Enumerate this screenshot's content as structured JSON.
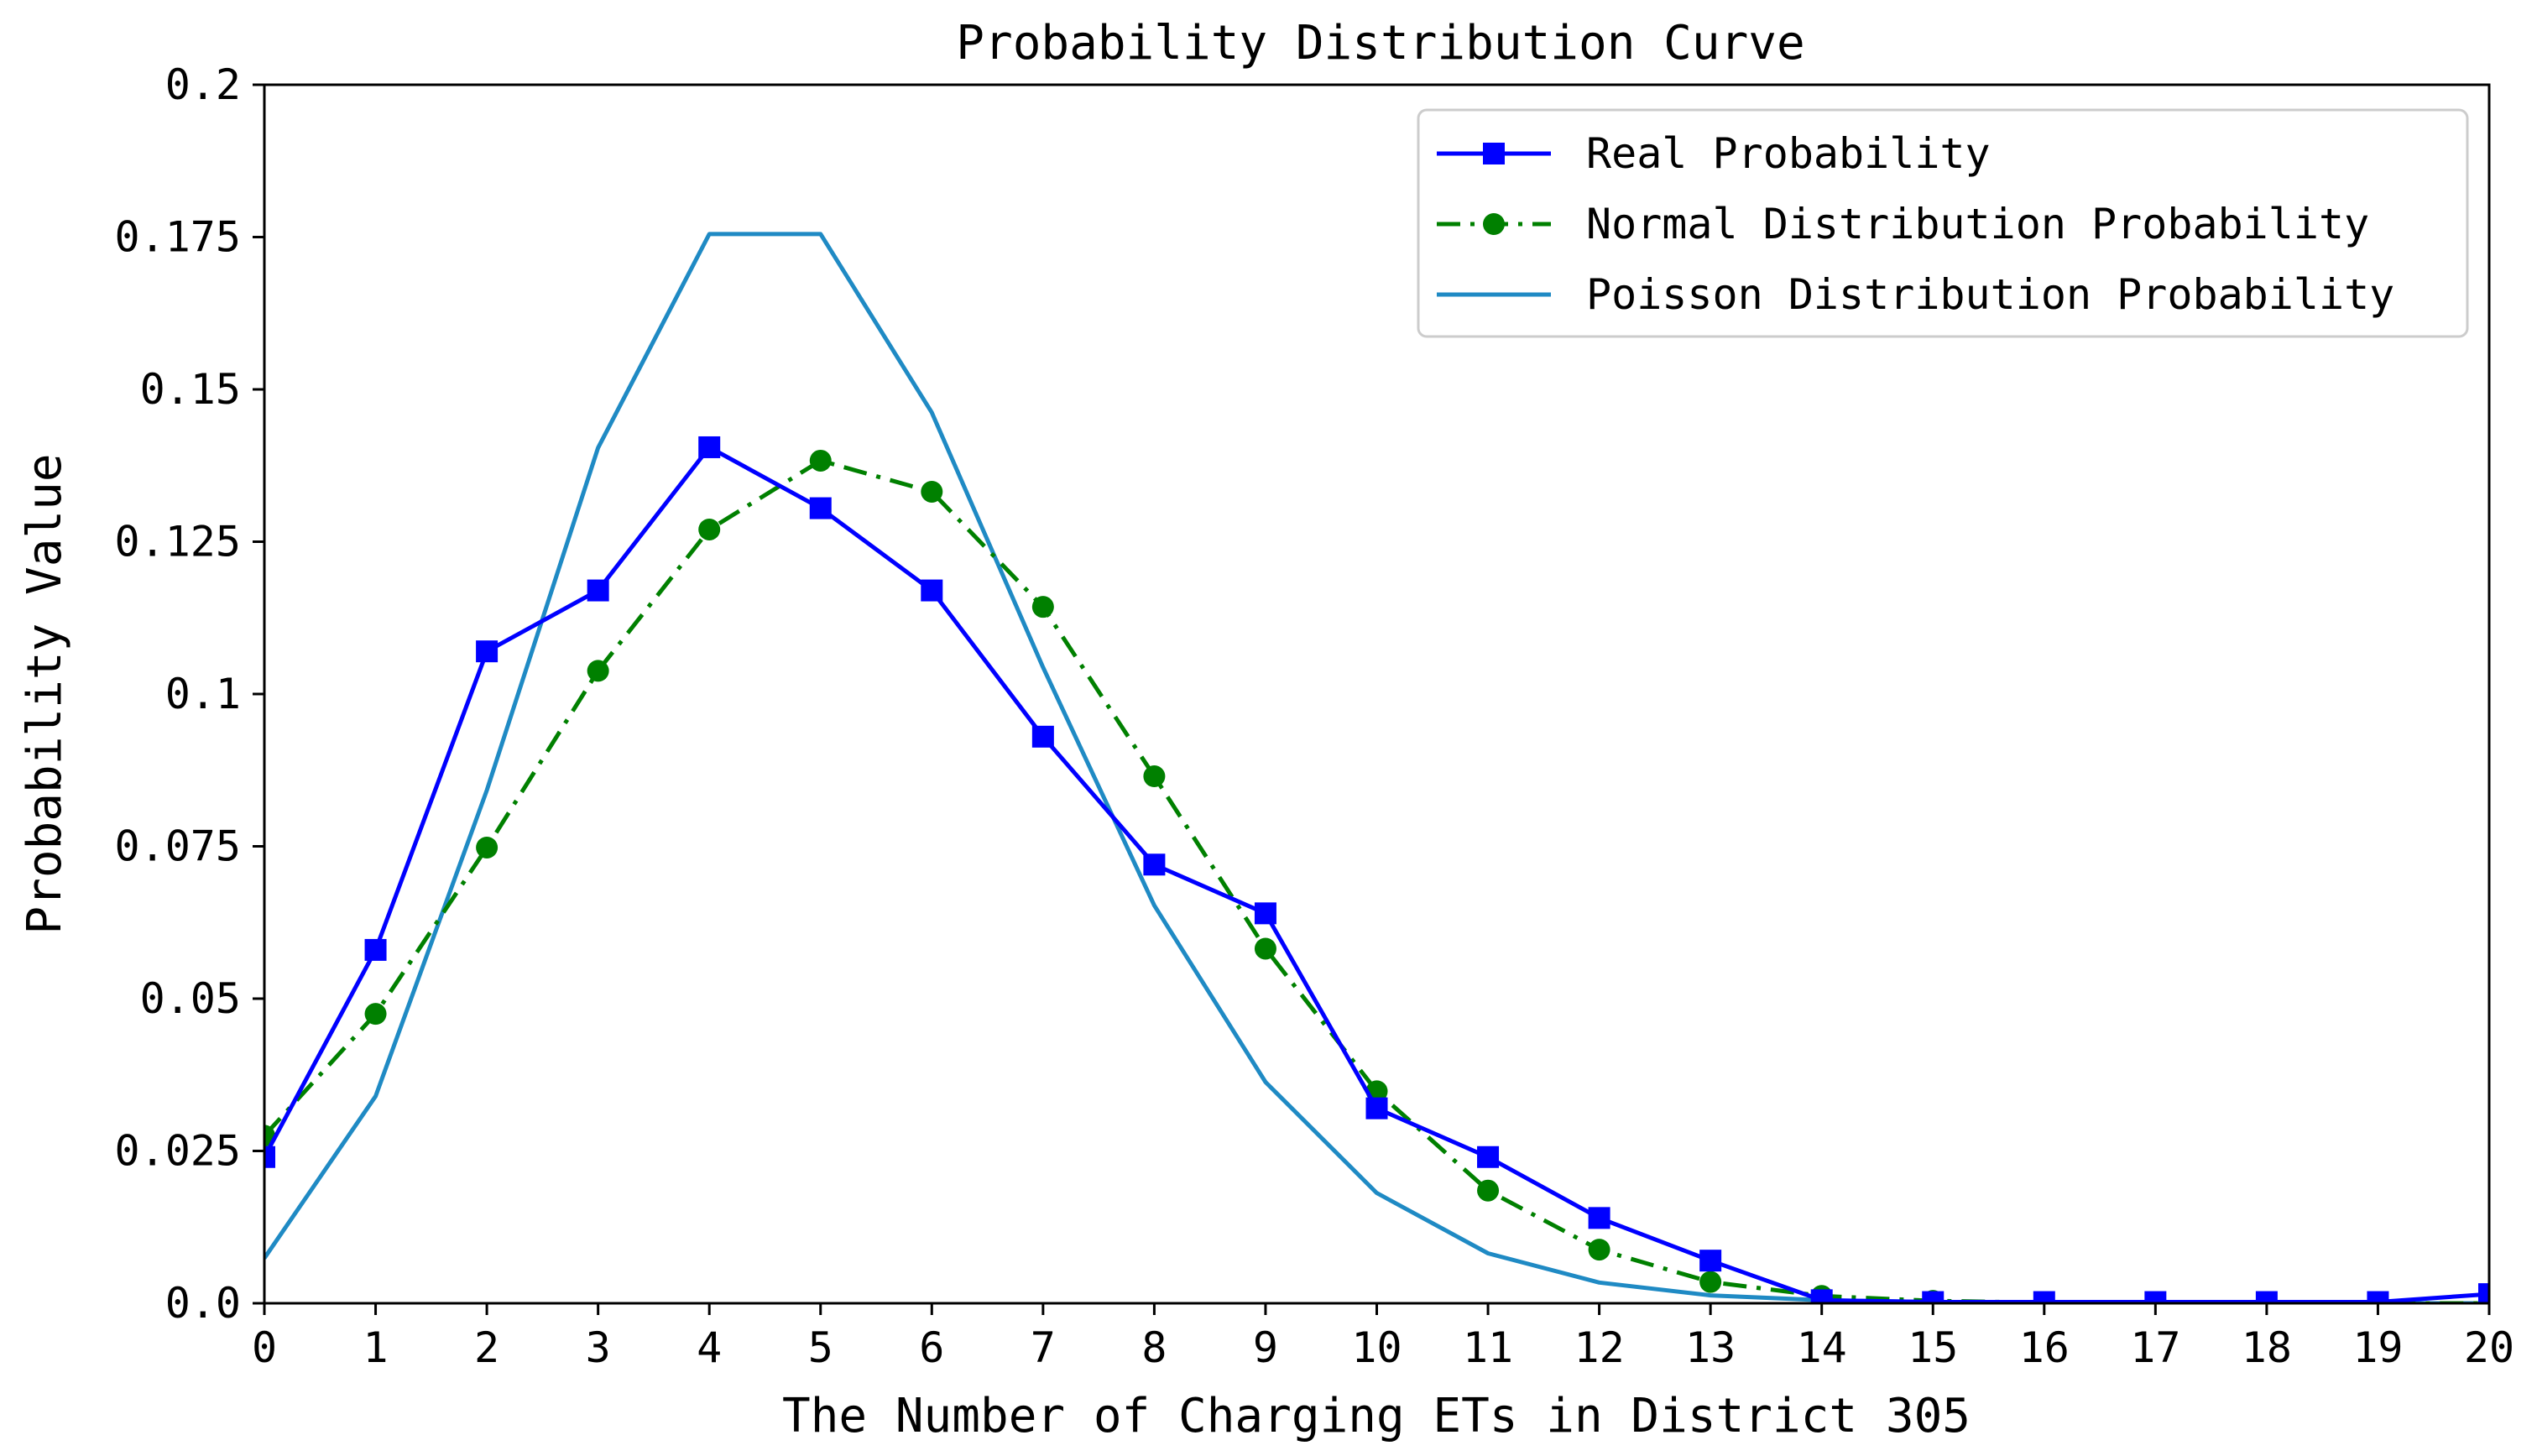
{
  "chart_data": {
    "type": "line",
    "title": "Probability Distribution Curve",
    "xlabel": "The Number of Charging ETs in District 305",
    "ylabel": "Probability Value",
    "x": [
      0,
      1,
      2,
      3,
      4,
      5,
      6,
      7,
      8,
      9,
      10,
      11,
      12,
      13,
      14,
      15,
      16,
      17,
      18,
      19,
      20
    ],
    "xlim": [
      0,
      20
    ],
    "ylim": [
      0,
      0.2
    ],
    "xticks": [
      "0",
      "1",
      "2",
      "3",
      "4",
      "5",
      "6",
      "7",
      "8",
      "9",
      "10",
      "11",
      "12",
      "13",
      "14",
      "15",
      "16",
      "17",
      "18",
      "19",
      "20"
    ],
    "yticks": [
      {
        "value": 0,
        "label": "0.0"
      },
      {
        "value": 0.025,
        "label": "0.025"
      },
      {
        "value": 0.05,
        "label": "0.05"
      },
      {
        "value": 0.075,
        "label": "0.075"
      },
      {
        "value": 0.1,
        "label": "0.1"
      },
      {
        "value": 0.125,
        "label": "0.125"
      },
      {
        "value": 0.15,
        "label": "0.15"
      },
      {
        "value": 0.175,
        "label": "0.175"
      },
      {
        "value": 0.2,
        "label": "0.2"
      }
    ],
    "grid": false,
    "legend_position": "top-right",
    "series": [
      {
        "name": "Real Probability",
        "color": "#0000ff",
        "line_style": "solid",
        "marker": "square",
        "values": [
          0.024,
          0.058,
          0.107,
          0.117,
          0.1405,
          0.1305,
          0.117,
          0.093,
          0.072,
          0.064,
          0.032,
          0.024,
          0.014,
          0.007,
          0.0005,
          0.0002,
          0.0002,
          0.0002,
          0.0002,
          0.0002,
          0.0015
        ]
      },
      {
        "name": "Normal Distribution Probability",
        "color": "#008000",
        "line_style": "dash-dot",
        "marker": "circle",
        "values": [
          0.0275,
          0.0475,
          0.0748,
          0.1038,
          0.127,
          0.1383,
          0.1332,
          0.1143,
          0.0865,
          0.0582,
          0.0348,
          0.0185,
          0.0088,
          0.0035,
          0.0012,
          0.0004,
          0.0001,
          0.0,
          0.0,
          0.0,
          0.0
        ]
      },
      {
        "name": "Poisson Distribution Probability",
        "color": "#1f8ac4",
        "line_style": "solid",
        "marker": "none",
        "values": [
          0.0074,
          0.034,
          0.0842,
          0.1404,
          0.1755,
          0.1755,
          0.1462,
          0.1044,
          0.0653,
          0.0363,
          0.0181,
          0.0082,
          0.0034,
          0.0013,
          0.0005,
          0.0002,
          0.0,
          0.0,
          0.0,
          0.0,
          0.0
        ]
      }
    ]
  }
}
